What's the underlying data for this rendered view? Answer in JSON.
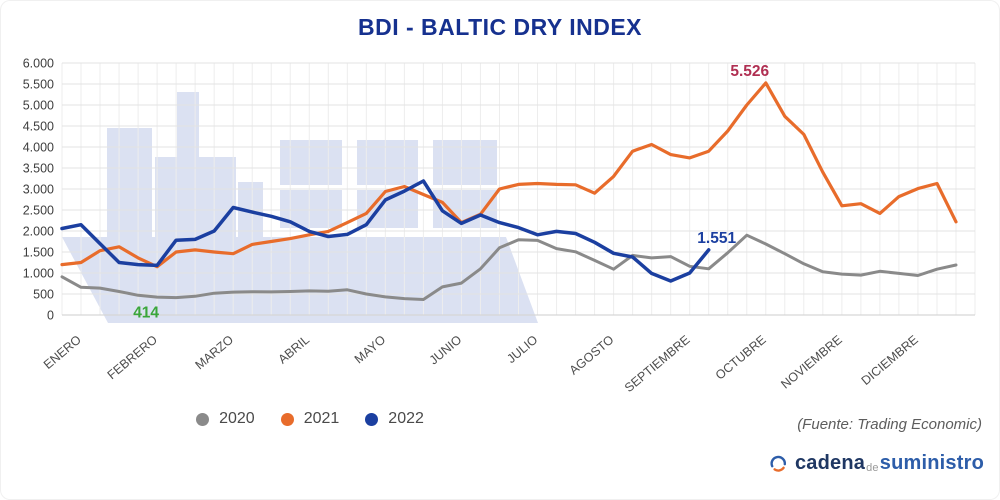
{
  "title": "BDI - BALTIC DRY INDEX",
  "source_note": "(Fuente: Trading Economic)",
  "logo": {
    "word1": "cadena",
    "word2": "de",
    "word3": "suministro"
  },
  "legend": {
    "items": [
      {
        "label": "2020",
        "color": "#8a8a8a"
      },
      {
        "label": "2021",
        "color": "#e86c2b"
      },
      {
        "label": "2022",
        "color": "#1b3fa0"
      }
    ]
  },
  "chart_data": {
    "type": "line",
    "title": "BDI - BALTIC DRY INDEX",
    "grid": true,
    "legend_position": "bottom",
    "watermark": "container-ship silhouette",
    "x_axis": {
      "tick_labels": [
        "ENERO",
        "FEBRERO",
        "MARZO",
        "ABRIL",
        "MAYO",
        "JUNIO",
        "JULIO",
        "AGOSTO",
        "SEPTIEMBRE",
        "OCTUBRE",
        "NOVIEMBRE",
        "DICIEMBRE"
      ],
      "points_per_month": 4,
      "unit": "weekly values, one year"
    },
    "y_axis": {
      "min": 0,
      "max": 6000,
      "step": 500,
      "tick_labels": [
        "6.000",
        "5.500",
        "5.000",
        "4.500",
        "4.000",
        "3.500",
        "3.000",
        "2.500",
        "2.000",
        "1.500",
        "1.000",
        "500",
        "0"
      ]
    },
    "series": [
      {
        "name": "2020",
        "color": "#8a8a8a",
        "width": 3,
        "values": [
          910,
          660,
          640,
          560,
          470,
          425,
          414,
          445,
          520,
          545,
          555,
          550,
          560,
          575,
          565,
          600,
          500,
          430,
          390,
          370,
          670,
          760,
          1100,
          1600,
          1790,
          1775,
          1580,
          1505,
          1300,
          1090,
          1420,
          1360,
          1390,
          1160,
          1100,
          1480,
          1900,
          1690,
          1460,
          1220,
          1030,
          975,
          950,
          1040,
          990,
          940,
          1090,
          1190
        ]
      },
      {
        "name": "2021",
        "color": "#e86c2b",
        "width": 3.2,
        "values": [
          1200,
          1250,
          1530,
          1625,
          1360,
          1150,
          1500,
          1550,
          1500,
          1460,
          1680,
          1750,
          1820,
          1910,
          1990,
          2200,
          2420,
          2940,
          3060,
          2870,
          2680,
          2200,
          2400,
          3000,
          3110,
          3130,
          3110,
          3100,
          2900,
          3300,
          3900,
          4060,
          3820,
          3740,
          3900,
          4380,
          5000,
          5526,
          4730,
          4300,
          3400,
          2600,
          2650,
          2420,
          2820,
          3010,
          3130,
          2220
        ]
      },
      {
        "name": "2022",
        "color": "#1b3fa0",
        "width": 3.5,
        "values": [
          2060,
          2150,
          1700,
          1250,
          1200,
          1180,
          1780,
          1800,
          2000,
          2560,
          2450,
          2350,
          2220,
          1990,
          1870,
          1920,
          2150,
          2740,
          2950,
          3190,
          2480,
          2180,
          2380,
          2200,
          2080,
          1910,
          1990,
          1940,
          1730,
          1470,
          1380,
          990,
          810,
          1000,
          1551
        ]
      }
    ],
    "annotations": [
      {
        "text": "5.526",
        "value": 5526,
        "series": "2021",
        "week": 37,
        "color": "#b02f52"
      },
      {
        "text": "1.551",
        "value": 1551,
        "series": "2022",
        "week": 34,
        "color": "#1b3fa0"
      },
      {
        "text": "414",
        "value": 414,
        "series": "2020",
        "week": 6,
        "color": "#3aa63a"
      }
    ]
  }
}
